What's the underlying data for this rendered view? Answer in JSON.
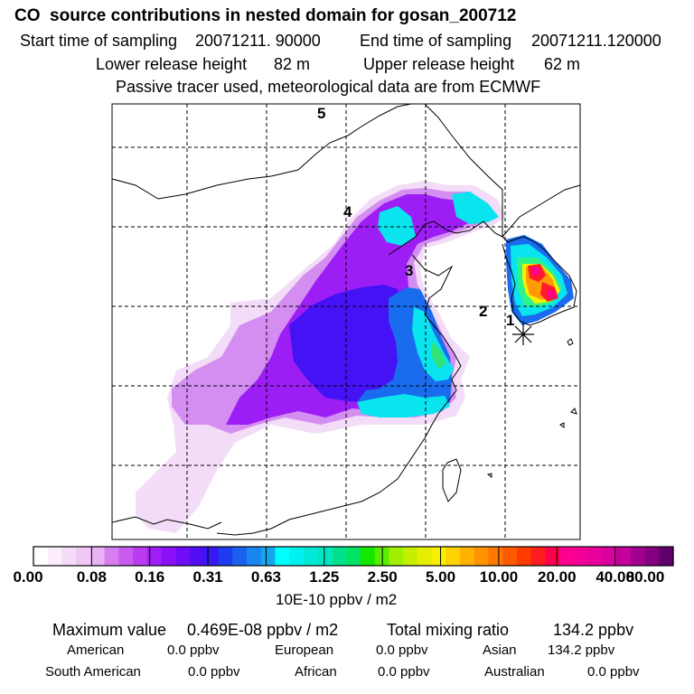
{
  "header": {
    "title": "CO  source contributions in nested domain for gosan_200712",
    "start_label": "Start time of sampling",
    "start_value": "20071211. 90000",
    "end_label": "End time of sampling",
    "end_value": "20071211.120000",
    "lower_label": "Lower release height",
    "lower_value": "82 m",
    "upper_label": "Upper release height",
    "upper_value": "62 m",
    "tracer_note": "Passive tracer used, meteorological data are from ECMWF"
  },
  "map": {
    "markers": [
      "1",
      "2",
      "3",
      "4",
      "5"
    ],
    "site_symbol": "receptor-star",
    "plume_colors": [
      "#f2d7f6",
      "#b13cf1",
      "#5a16f6",
      "#1f6fe8",
      "#08e6f0",
      "#2ef28a",
      "#f4f200",
      "#ff1a2e"
    ]
  },
  "colorbar": {
    "labels": [
      "0.00",
      "0.08",
      "0.16",
      "0.31",
      "0.63",
      "1.25",
      "2.50",
      "5.00",
      "10.00",
      "20.00",
      "40.00",
      "80.00"
    ],
    "units": "10E-10 ppbv / m2",
    "colors": [
      "#ffffff",
      "#fbeefc",
      "#f6dcf9",
      "#f0c8f6",
      "#e8b2f4",
      "#d77ef0",
      "#c95cee",
      "#b93cf0",
      "#a01ef5",
      "#8a10f8",
      "#6f0df9",
      "#520cf6",
      "#3818f2",
      "#1f3bf0",
      "#1a62ee",
      "#1a84ef",
      "#15a6ef",
      "#00ffff",
      "#00f2ee",
      "#00e8d8",
      "#00e6c0",
      "#00e18e",
      "#00e264",
      "#14e800",
      "#58ec00",
      "#a0ee00",
      "#c6ef00",
      "#e6ee00",
      "#f8f000",
      "#ffd200",
      "#ffb300",
      "#ff9300",
      "#ff7800",
      "#ff5a00",
      "#ff3d00",
      "#ff1d1d",
      "#ff004c",
      "#ff0090",
      "#f40097",
      "#e8009c",
      "#d8009e",
      "#c4009c",
      "#a40090",
      "#850080",
      "#60006a"
    ]
  },
  "stats": {
    "max_label": "Maximum value",
    "max_value": "0.469E-08 ppbv / m2",
    "total_label": "Total mixing ratio",
    "total_value": "134.2 ppbv",
    "rows": [
      [
        {
          "name": "American",
          "value": "0.0 ppbv"
        },
        {
          "name": "European",
          "value": "0.0 ppbv"
        },
        {
          "name": "Asian",
          "value": "134.2 ppbv"
        }
      ],
      [
        {
          "name": "South American",
          "value": "0.0 ppbv"
        },
        {
          "name": "African",
          "value": "0.0 ppbv"
        },
        {
          "name": "Australian",
          "value": "0.0 ppbv"
        }
      ]
    ]
  }
}
